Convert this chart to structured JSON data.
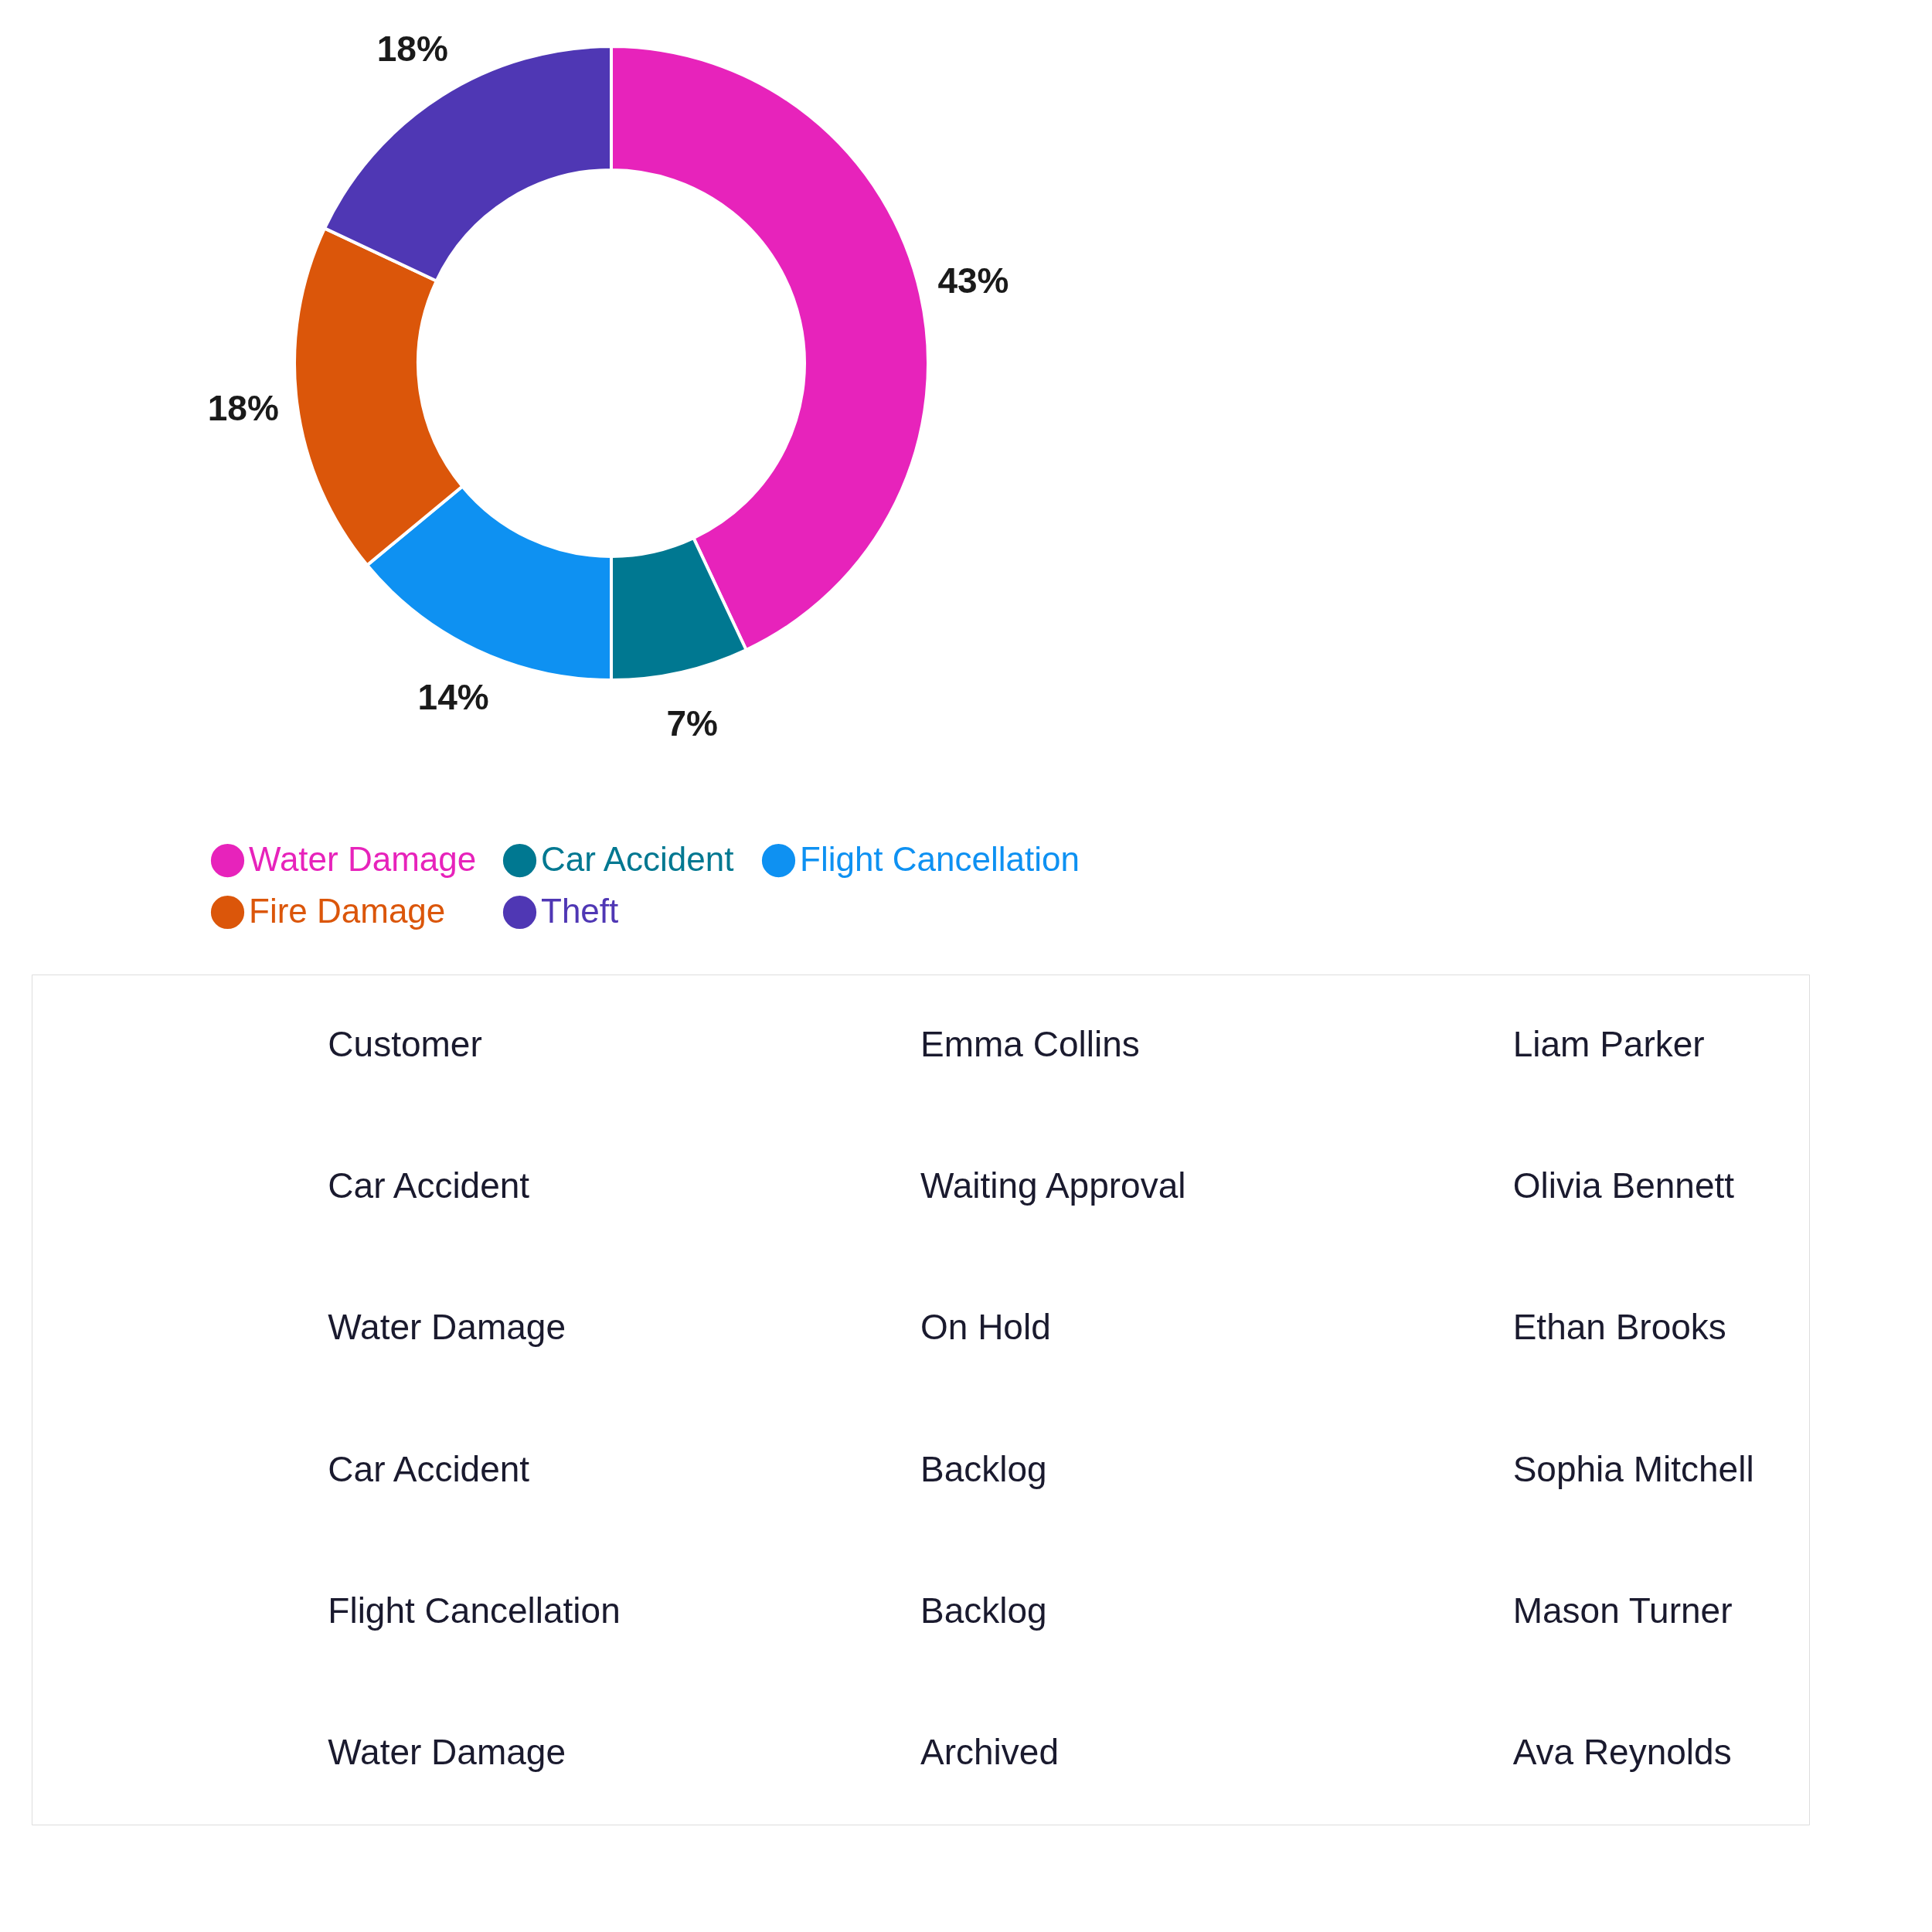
{
  "chart_data": [
    {
      "type": "donut",
      "categories": [
        "Water Damage",
        "Car Accident",
        "Flight Cancellation",
        "Fire Damage",
        "Theft"
      ],
      "values": [
        43,
        7,
        14,
        18,
        18
      ],
      "colors": [
        "#e723bb",
        "#007891",
        "#0e91f2",
        "#db560a",
        "#4f37b4"
      ],
      "value_labels": [
        "43%",
        "7%",
        "14%",
        "18%",
        "18%"
      ],
      "legend": "bottom"
    },
    {
      "type": "other",
      "annotations": [
        "Customer",
        "Emma Collins",
        "Liam Parker",
        "Car Accident",
        "Waiting Approval",
        "Olivia Bennett",
        "Water Damage",
        "On Hold",
        "Ethan Brooks",
        "Car Accident",
        "Backlog",
        "Sophia Mitchell",
        "Flight Cancellation",
        "Backlog",
        "Mason Turner",
        "Water Damage",
        "Archived",
        "Ava Reynolds"
      ]
    }
  ]
}
